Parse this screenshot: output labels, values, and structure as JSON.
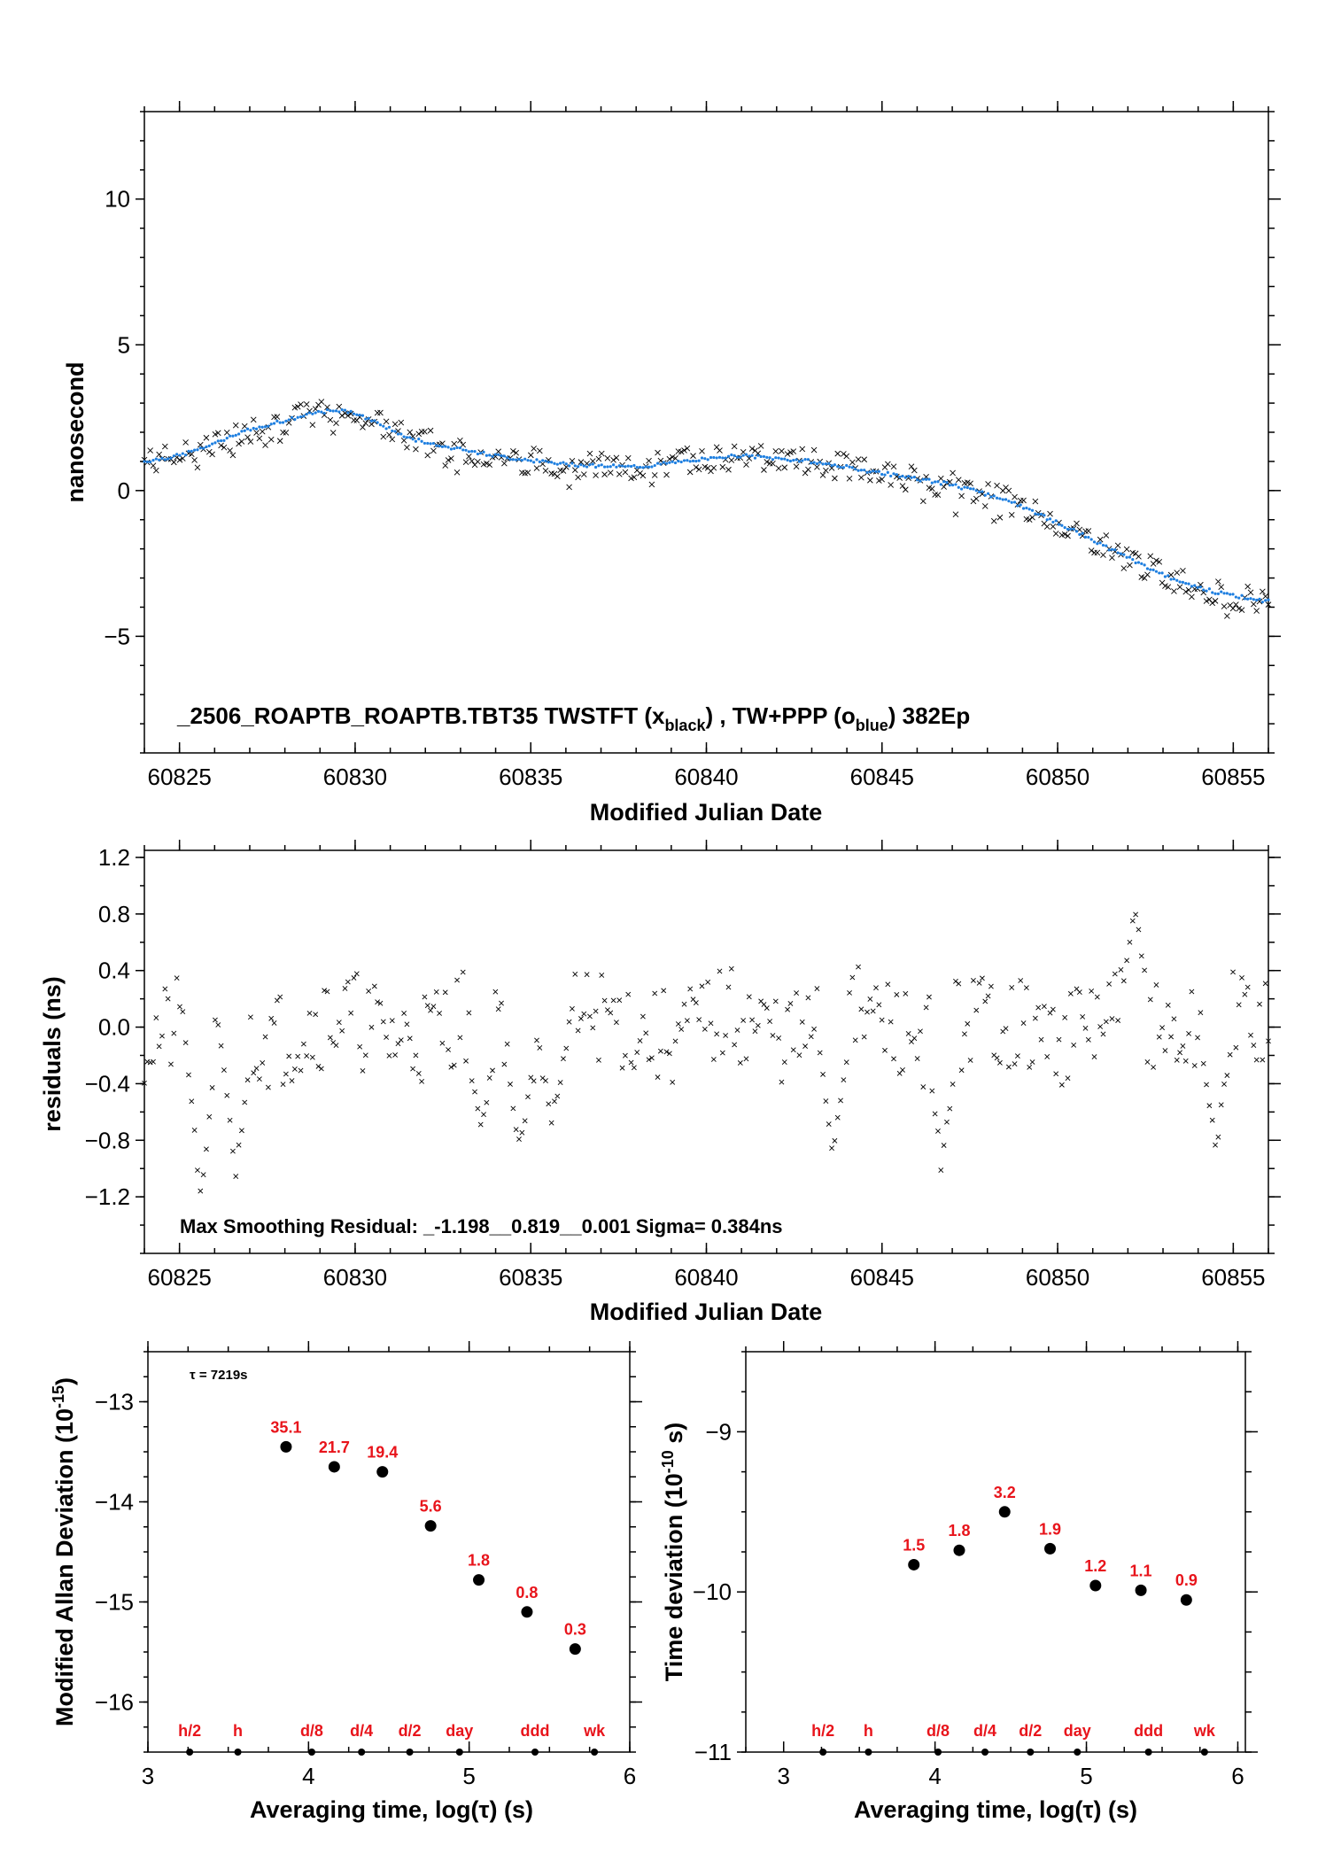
{
  "colors": {
    "black_series": "#000000",
    "blue_series": "#1e7fe0",
    "labels_red": "#e8141b"
  },
  "chart_data": [
    {
      "type": "scatter",
      "id": "top",
      "xlim": [
        60824,
        60856
      ],
      "ylim": [
        -9,
        13
      ],
      "xticks": [
        60825,
        60830,
        60835,
        60840,
        60845,
        60850,
        60855
      ],
      "yticks": [
        -5,
        0,
        5,
        10
      ],
      "xlabel": "Modified Julian Date",
      "ylabel": "nanosecond",
      "title_parts": {
        "lead": "_2506_ROAPTB_ROAPTB.TBT35     TWSTFT (x",
        "sub1": "black",
        "mid": ") ,  TW+PPP (o",
        "sub2": "blue",
        "tail": ")  382Ep"
      },
      "trend": {
        "x": [
          60824,
          60825,
          60826,
          60827,
          60828,
          60829,
          60829.7,
          60830.5,
          60831.5,
          60833,
          60834.5,
          60836,
          60838,
          60840,
          60841,
          60843,
          60845,
          60847,
          60848.5,
          60850,
          60851.5,
          60853,
          60854.5,
          60856
        ],
        "y": [
          1.0,
          1.2,
          1.6,
          2.1,
          2.4,
          2.7,
          2.75,
          2.4,
          1.8,
          1.4,
          1.1,
          0.9,
          0.8,
          1.1,
          1.2,
          1.0,
          0.6,
          0.2,
          -0.3,
          -1.1,
          -2.0,
          -2.9,
          -3.5,
          -3.8
        ]
      }
    },
    {
      "type": "scatter",
      "id": "residuals",
      "xlim": [
        60824,
        60856
      ],
      "ylim": [
        -1.6,
        1.25
      ],
      "xticks": [
        60825,
        60830,
        60835,
        60840,
        60845,
        60850,
        60855
      ],
      "yticks": [
        -1.2,
        -0.8,
        -0.4,
        0.0,
        0.4,
        0.8,
        1.2
      ],
      "ytick_labels": [
        "−1.2",
        "−0.8",
        "−0.4",
        "0.0",
        "0.4",
        "0.8",
        "1.2"
      ],
      "xlabel": "Modified Julian Date",
      "ylabel": "residuals (ns)",
      "annotation": "Max Smoothing Residual: _-1.198__0.819__0.001  Sigma= 0.384ns",
      "spikes": [
        {
          "x": 60825.6,
          "y": -1.198
        },
        {
          "x": 60826.6,
          "y": -1.05
        },
        {
          "x": 60833.6,
          "y": -0.75
        },
        {
          "x": 60834.7,
          "y": -0.88
        },
        {
          "x": 60835.6,
          "y": -0.65
        },
        {
          "x": 60843.6,
          "y": -0.88
        },
        {
          "x": 60846.7,
          "y": -1.0
        },
        {
          "x": 60852.2,
          "y": 0.819
        },
        {
          "x": 60854.5,
          "y": -0.88
        }
      ]
    },
    {
      "type": "scatter",
      "id": "mdev",
      "xlim": [
        3,
        6
      ],
      "ylim": [
        -16.5,
        -12.5
      ],
      "xticks": [
        3,
        4,
        5,
        6
      ],
      "yticks": [
        -16,
        -15,
        -14,
        -13
      ],
      "xlabel": "Averaging time, log(τ) (s)",
      "ylabel": "Modified Allan Deviation (10",
      "ylabel_sup": "-15",
      "ylabel_tail": ")",
      "tau_note": "τ = 7219s",
      "x": [
        3.86,
        4.16,
        4.46,
        4.76,
        5.06,
        5.36,
        5.66
      ],
      "y": [
        -13.45,
        -13.65,
        -13.7,
        -14.24,
        -14.78,
        -15.1,
        -15.47
      ],
      "labels": [
        "35.1",
        "21.7",
        "19.4",
        "5.6",
        "1.8",
        "0.8",
        "0.3"
      ],
      "markers": [
        {
          "x": 3.26,
          "label": "h/2"
        },
        {
          "x": 3.56,
          "label": "h"
        },
        {
          "x": 4.02,
          "label": "d/8"
        },
        {
          "x": 4.33,
          "label": "d/4"
        },
        {
          "x": 4.63,
          "label": "d/2"
        },
        {
          "x": 4.94,
          "label": "day"
        },
        {
          "x": 5.41,
          "label": "ddd"
        },
        {
          "x": 5.78,
          "label": "wk"
        }
      ]
    },
    {
      "type": "scatter",
      "id": "tdev",
      "xlim": [
        2.75,
        6.05
      ],
      "ylim": [
        -11,
        -8.5
      ],
      "xticks": [
        3,
        4,
        5,
        6
      ],
      "yticks": [
        -11,
        -10,
        -9
      ],
      "xlabel": "Averaging time, log(τ) (s)",
      "ylabel": "Time deviation (10",
      "ylabel_sup": "-10",
      "ylabel_tail": " s)",
      "x": [
        3.86,
        4.16,
        4.46,
        4.76,
        5.06,
        5.36,
        5.66
      ],
      "y": [
        -9.83,
        -9.74,
        -9.5,
        -9.73,
        -9.96,
        -9.99,
        -10.05
      ],
      "labels": [
        "1.5",
        "1.8",
        "3.2",
        "1.9",
        "1.2",
        "1.1",
        "0.9"
      ],
      "markers": [
        {
          "x": 3.26,
          "label": "h/2"
        },
        {
          "x": 3.56,
          "label": "h"
        },
        {
          "x": 4.02,
          "label": "d/8"
        },
        {
          "x": 4.33,
          "label": "d/4"
        },
        {
          "x": 4.63,
          "label": "d/2"
        },
        {
          "x": 4.94,
          "label": "day"
        },
        {
          "x": 5.41,
          "label": "ddd"
        },
        {
          "x": 5.78,
          "label": "wk"
        }
      ]
    }
  ]
}
